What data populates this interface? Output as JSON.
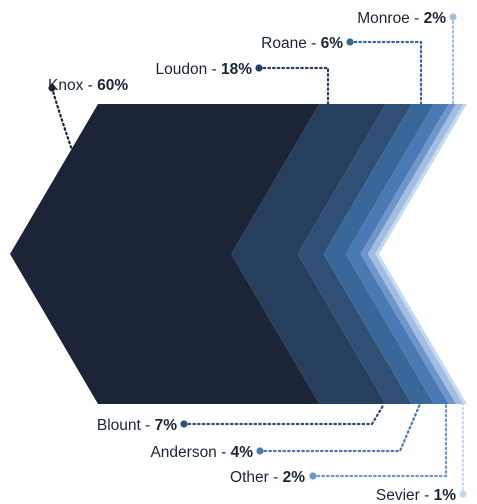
{
  "chart_data": {
    "type": "area",
    "segments": [
      {
        "name": "Knox",
        "value": 60,
        "label": "60%",
        "color": "#1b2537"
      },
      {
        "name": "Loudon",
        "value": 18,
        "label": "18%",
        "color": "#273f5e"
      },
      {
        "name": "Blount",
        "value": 7,
        "label": "7%",
        "color": "#2f4f75"
      },
      {
        "name": "Roane",
        "value": 6,
        "label": "6%",
        "color": "#39679a"
      },
      {
        "name": "Anderson",
        "value": 4,
        "label": "4%",
        "color": "#4a79b3"
      },
      {
        "name": "Other",
        "value": 2,
        "label": "2%",
        "color": "#7095c9"
      },
      {
        "name": "Monroe",
        "value": 2,
        "label": "2%",
        "color": "#a1bde0"
      },
      {
        "name": "Sevier",
        "value": 1,
        "label": "1%",
        "color": "#c7d9ef"
      }
    ],
    "label_separator": " - "
  }
}
